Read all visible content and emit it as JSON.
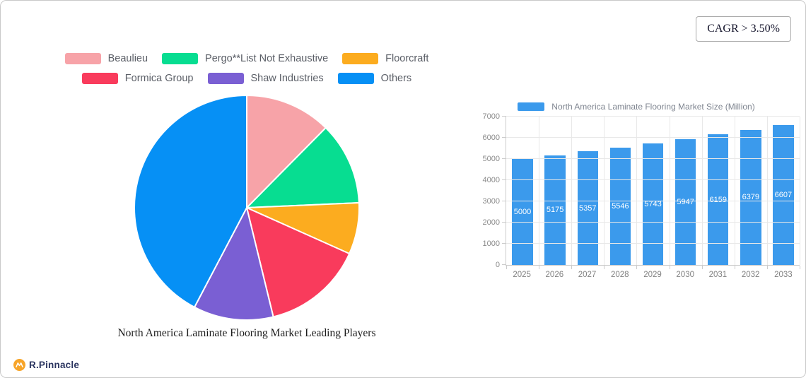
{
  "header": {
    "cagr_badge": "CAGR > 3.50%"
  },
  "footer": {
    "brand": "R.Pinnacle",
    "brand_color": "#f7a428",
    "brand_text_color": "#2b3560"
  },
  "chart_data": [
    {
      "type": "pie",
      "title": "North America Laminate Flooring Market Leading Players",
      "labels": [
        "Beaulieu",
        "Pergo**List Not Exhaustive",
        "Floorcraft",
        "Formica Group",
        "Shaw Industries",
        "Others"
      ],
      "values": [
        12.4,
        11.9,
        7.4,
        14.5,
        11.5,
        42.3
      ],
      "unit": "percent of market (estimated from slice angles)",
      "colors": [
        "#f7a3a8",
        "#07dd91",
        "#fcac1f",
        "#f93b5c",
        "#7a5fd3",
        "#0690f5"
      ],
      "start_angle": "12 o'clock, clockwise",
      "legend_position": "top, two centered rows of three",
      "legend_rows": [
        3,
        3
      ]
    },
    {
      "type": "bar",
      "legend": "North America Laminate Flooring Market Size (Million)",
      "categories": [
        "2025",
        "2026",
        "2027",
        "2028",
        "2029",
        "2030",
        "2031",
        "2032",
        "2033"
      ],
      "values": [
        5000,
        5175,
        5357,
        5546,
        5743,
        5947,
        6159,
        6379,
        6607
      ],
      "ylim": [
        0,
        7000
      ],
      "ytick_step": 1000,
      "bar_color": "#3b9aec",
      "grid": true,
      "value_labels": "inside bars, vertically centered, white"
    }
  ]
}
